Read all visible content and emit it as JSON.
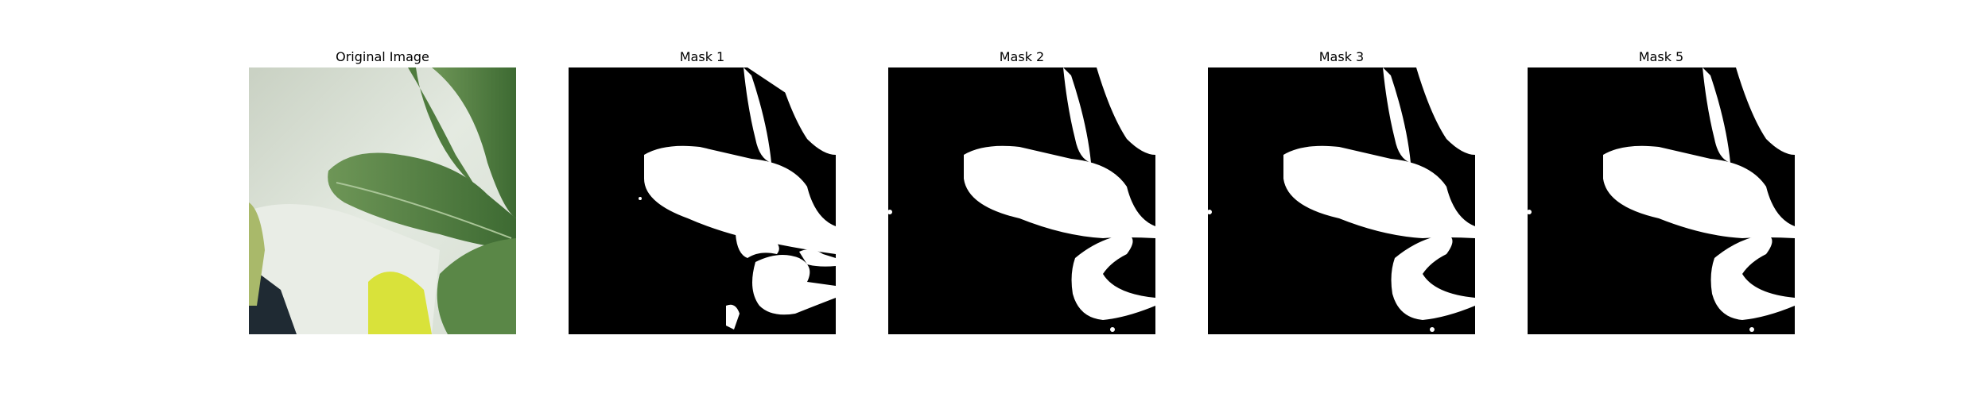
{
  "figure": {
    "panels": [
      {
        "title": "Original Image",
        "kind": "photo"
      },
      {
        "title": "Mask 1",
        "kind": "mask",
        "variant": "noisy"
      },
      {
        "title": "Mask 2",
        "kind": "mask",
        "variant": "clean"
      },
      {
        "title": "Mask 3",
        "kind": "mask",
        "variant": "clean"
      },
      {
        "title": "Mask 5",
        "kind": "mask",
        "variant": "clean"
      }
    ]
  },
  "colors": {
    "mask_background": "#000000",
    "mask_foreground": "#ffffff",
    "leaf_green": "#5f8a4a",
    "leaf_dark": "#3f6b33",
    "paper_white": "#e7ece4",
    "yellow_leaf": "#d9e23a"
  }
}
